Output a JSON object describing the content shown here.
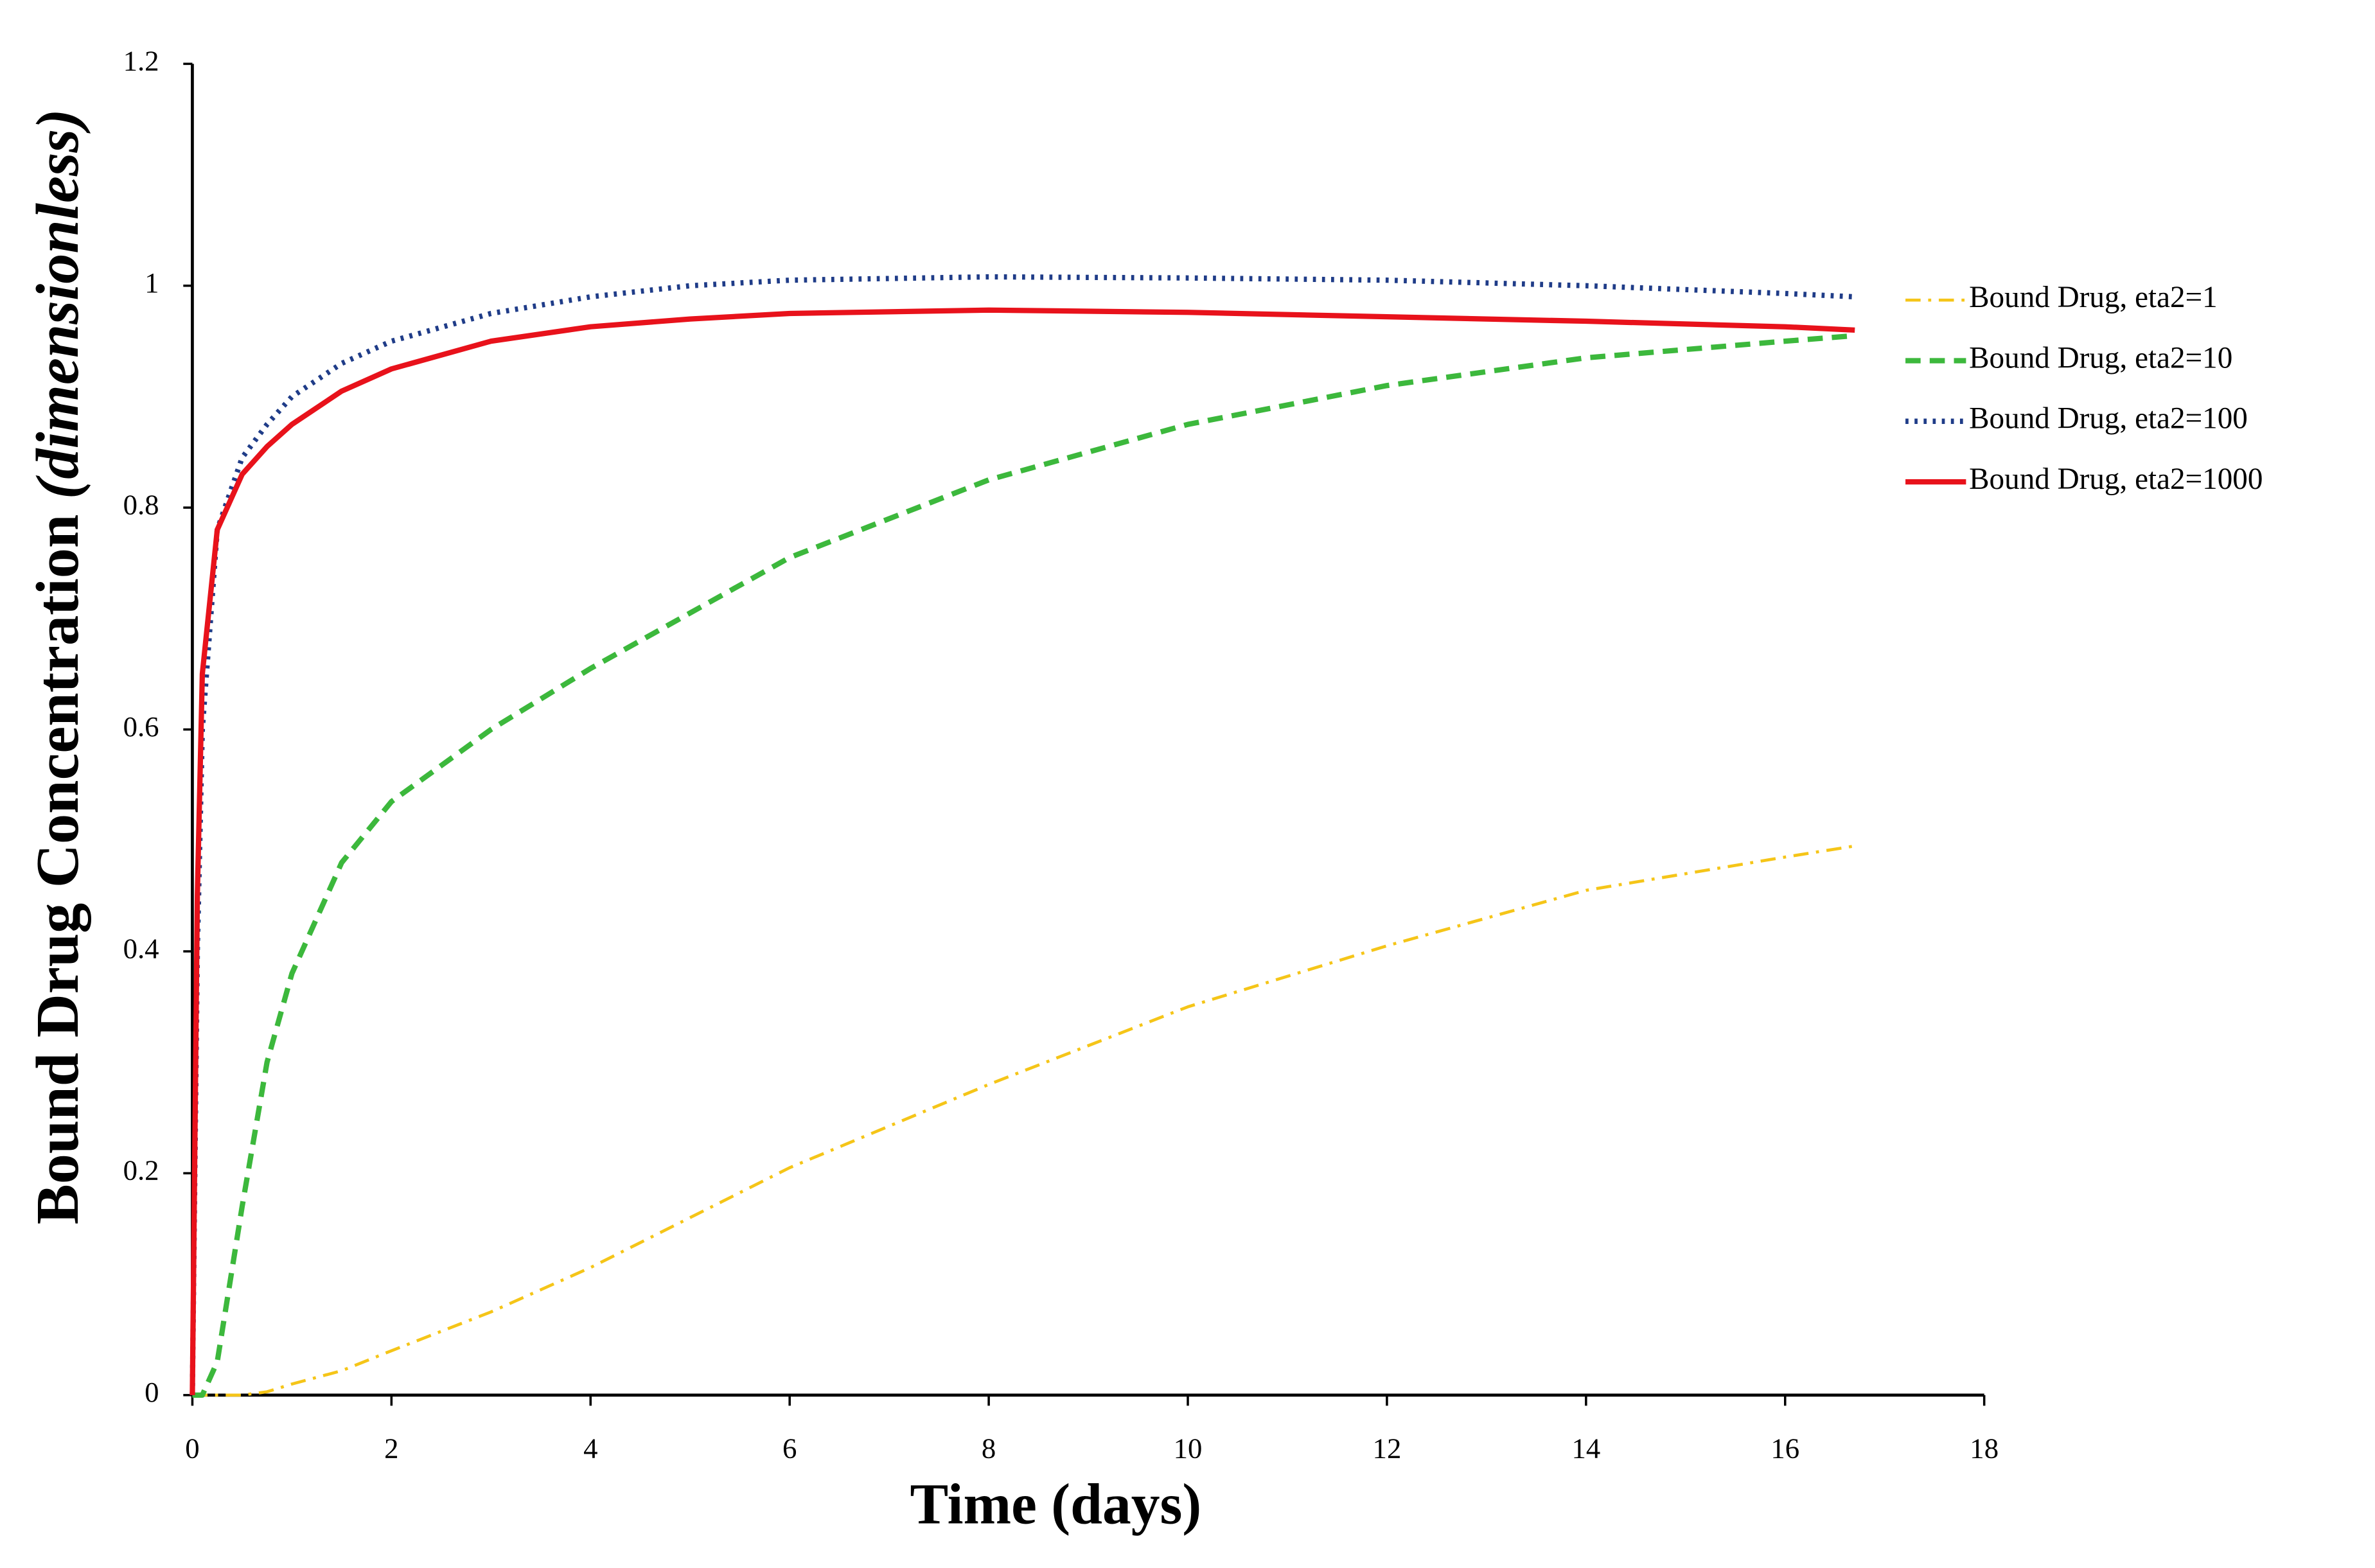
{
  "chart_data": {
    "type": "line",
    "x_label": "Time (days)",
    "y_label": "Bound Drug Concentration",
    "y_label_unit": "(dimensionless)",
    "x": [
      0,
      0.05,
      0.1,
      0.25,
      0.5,
      0.75,
      1,
      1.5,
      2,
      3,
      4,
      5,
      6,
      8,
      10,
      12,
      14,
      16,
      16.7
    ],
    "series": [
      {
        "name": "Bound Drug, eta2=1",
        "color": "#f5c518",
        "linestyle": "dashdot",
        "values": [
          0,
          0,
          0,
          0,
          0,
          0.003,
          0.01,
          0.022,
          0.04,
          0.075,
          0.115,
          0.16,
          0.205,
          0.28,
          0.35,
          0.405,
          0.455,
          0.485,
          0.495
        ]
      },
      {
        "name": "Bound Drug, eta2=10",
        "color": "#3cb83c",
        "linestyle": "dashed",
        "values": [
          0,
          0,
          0,
          0.03,
          0.17,
          0.3,
          0.38,
          0.48,
          0.535,
          0.6,
          0.655,
          0.705,
          0.755,
          0.825,
          0.875,
          0.91,
          0.935,
          0.95,
          0.955
        ]
      },
      {
        "name": "Bound Drug, eta2=100",
        "color": "#1f3c88",
        "linestyle": "dotted",
        "values": [
          0,
          0.4,
          0.6,
          0.78,
          0.845,
          0.875,
          0.9,
          0.93,
          0.95,
          0.975,
          0.99,
          1.0,
          1.005,
          1.008,
          1.007,
          1.005,
          1.0,
          0.993,
          0.99
        ]
      },
      {
        "name": "Bound Drug, eta2=1000",
        "color": "#e8121b",
        "linestyle": "solid",
        "values": [
          0,
          0.45,
          0.65,
          0.78,
          0.83,
          0.855,
          0.875,
          0.905,
          0.925,
          0.95,
          0.963,
          0.97,
          0.975,
          0.978,
          0.976,
          0.972,
          0.968,
          0.963,
          0.96
        ]
      }
    ],
    "xlim": [
      0,
      18
    ],
    "xticks": [
      0,
      2,
      4,
      6,
      8,
      10,
      12,
      14,
      16,
      18
    ],
    "ylim": [
      0,
      1.2
    ],
    "yticks": [
      0,
      0.2,
      0.4,
      0.6,
      0.8,
      1,
      1.2
    ],
    "grid": false,
    "legend": "right"
  }
}
